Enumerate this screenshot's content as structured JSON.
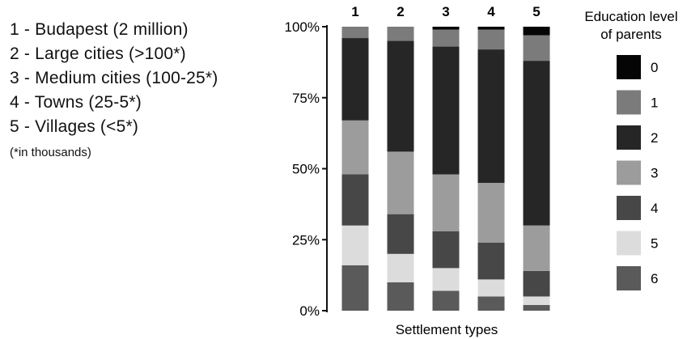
{
  "settlement_notes": [
    "1 - Budapest (2 million)",
    "2 - Large cities (>100*)",
    "3 - Medium cities (100-25*)",
    "4 - Towns (25-5*)",
    "5 - Villages (<5*)"
  ],
  "footnote": "(*in thousands)",
  "chart_data": {
    "type": "bar",
    "stacked": true,
    "categories": [
      "1",
      "2",
      "3",
      "4",
      "5"
    ],
    "xlabel": "Settlement types",
    "ylabel": "",
    "ylim": [
      0,
      100
    ],
    "y_ticks": [
      {
        "value": 0,
        "label": "0%"
      },
      {
        "value": 25,
        "label": "25%"
      },
      {
        "value": 50,
        "label": "50%"
      },
      {
        "value": 75,
        "label": "75%"
      },
      {
        "value": 100,
        "label": "100%"
      }
    ],
    "legend_title_lines": [
      "Education level",
      "of parents"
    ],
    "legend_placement": "right",
    "grid": false,
    "series": [
      {
        "name": "6",
        "color": "#5a5a5a",
        "values": [
          16,
          10,
          7,
          5,
          2
        ]
      },
      {
        "name": "5",
        "color": "#dcdcdc",
        "values": [
          14,
          10,
          8,
          6,
          3
        ]
      },
      {
        "name": "4",
        "color": "#474747",
        "values": [
          18,
          14,
          13,
          13,
          9
        ]
      },
      {
        "name": "3",
        "color": "#9c9c9c",
        "values": [
          19,
          22,
          20,
          21,
          16
        ]
      },
      {
        "name": "2",
        "color": "#262626",
        "values": [
          29,
          39,
          45,
          47,
          58
        ]
      },
      {
        "name": "1",
        "color": "#7b7b7b",
        "values": [
          4,
          5,
          6,
          7,
          9
        ]
      },
      {
        "name": "0",
        "color": "#050505",
        "values": [
          0,
          0,
          1,
          1,
          3
        ]
      }
    ]
  }
}
